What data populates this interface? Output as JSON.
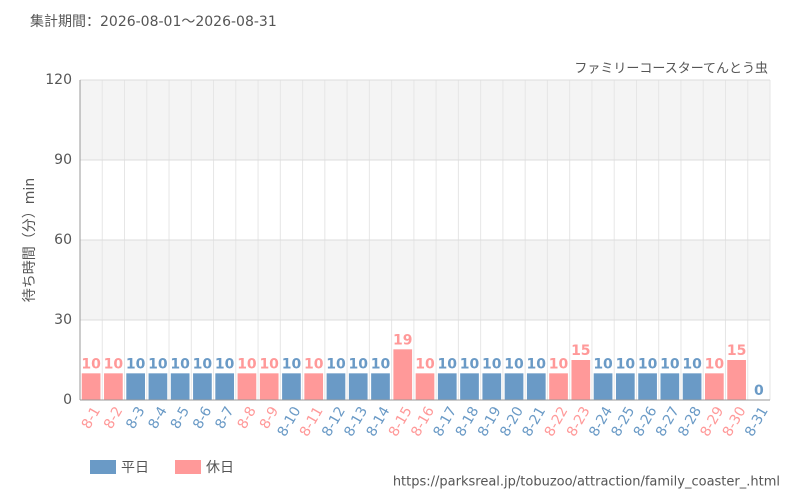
{
  "chart_data": {
    "type": "bar",
    "title": "集計期間：2026-08-01～2026-08-31",
    "subtitle": "ファミリーコースターてんとう虫",
    "y_label": "待ち時間（分）min",
    "source": "https://parksreal.jp/tobuzoo/attraction/family_coaster_.html",
    "categories": [
      "8-1",
      "8-2",
      "8-3",
      "8-4",
      "8-5",
      "8-6",
      "8-7",
      "8-8",
      "8-9",
      "8-10",
      "8-11",
      "8-12",
      "8-13",
      "8-14",
      "8-15",
      "8-16",
      "8-17",
      "8-18",
      "8-19",
      "8-20",
      "8-21",
      "8-22",
      "8-23",
      "8-24",
      "8-25",
      "8-26",
      "8-27",
      "8-28",
      "8-29",
      "8-30",
      "8-31"
    ],
    "series": [
      {
        "name": "平日",
        "color": "#6a9ac6",
        "values": [
          null,
          null,
          10,
          10,
          10,
          10,
          10,
          null,
          null,
          10,
          null,
          10,
          10,
          10,
          null,
          null,
          10,
          10,
          10,
          10,
          10,
          null,
          null,
          10,
          10,
          10,
          10,
          10,
          null,
          null,
          0
        ]
      },
      {
        "name": "休日",
        "color": "#ff9999",
        "values": [
          10,
          10,
          null,
          null,
          null,
          null,
          null,
          10,
          10,
          null,
          10,
          null,
          null,
          null,
          19,
          10,
          null,
          null,
          null,
          null,
          null,
          10,
          15,
          null,
          null,
          null,
          null,
          null,
          10,
          15,
          null
        ]
      }
    ],
    "ylim": [
      0,
      120
    ],
    "yticks": [
      0,
      30,
      60,
      90,
      120
    ],
    "grid": true
  }
}
